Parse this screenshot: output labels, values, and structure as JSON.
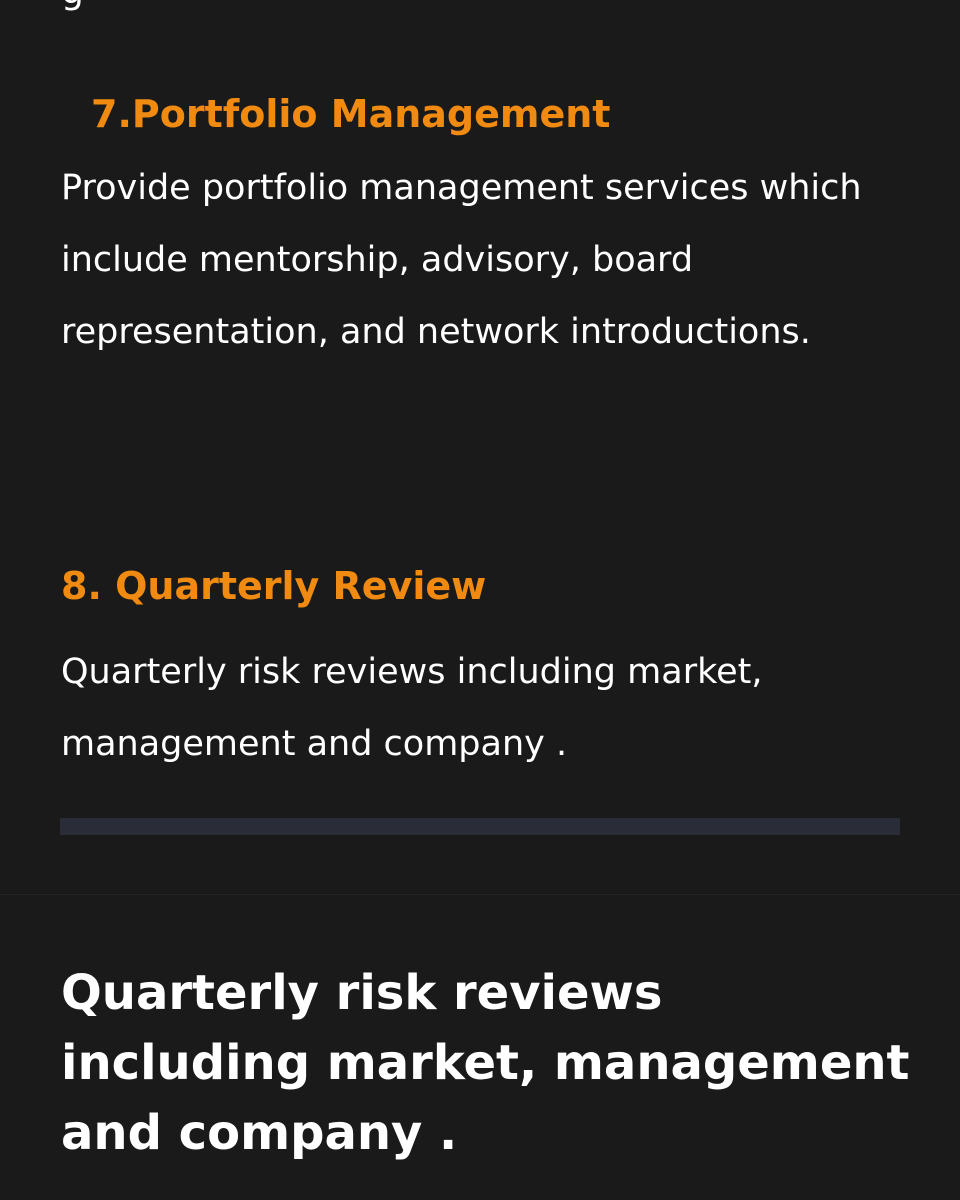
{
  "top_cut_text": "g",
  "sections": [
    {
      "title": "7.Portfolio Management",
      "body": "Provide portfolio management services which include mentorship, advisory, board representation, and network introductions."
    },
    {
      "title": "8. Quarterly Review",
      "body": "Quarterly risk reviews including market, management and company ."
    }
  ],
  "highlight": {
    "text": "Quarterly risk reviews including market, management and company ."
  },
  "colors": {
    "background": "#1a1a1a",
    "accent": "#f08a10",
    "divider": "#2a2c38",
    "text": "#ffffff"
  }
}
